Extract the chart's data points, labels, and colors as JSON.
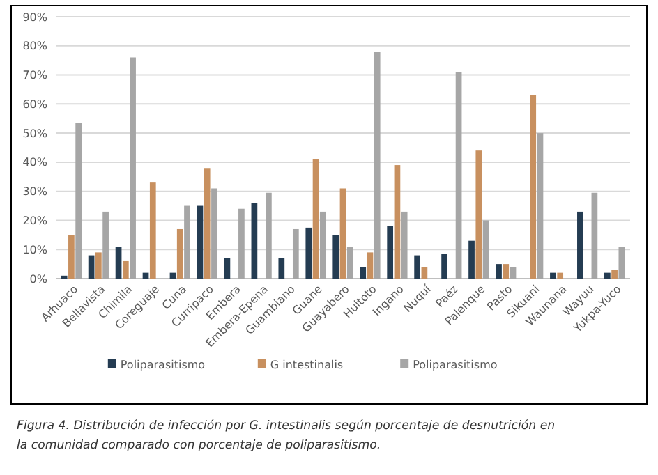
{
  "chart_data": {
    "type": "bar",
    "categories": [
      "Arhuaco",
      "Bellavista",
      "Chimila",
      "Coreguaje",
      "Cuna",
      "Curripaco",
      "Embera",
      "Embera-Epena",
      "Guambiano",
      "Guane",
      "Guayabero",
      "Huitoto",
      "Ingano",
      "Nuquí",
      "Paéz",
      "Palenque",
      "Pasto",
      "Sikuani",
      "Waunana",
      "Wayuu",
      "Yukpa-Yuco"
    ],
    "series": [
      {
        "name": "Poliparasitismo",
        "color": "#243c52",
        "values": [
          1,
          8,
          11,
          2,
          2,
          25,
          7,
          26,
          7,
          17.5,
          15,
          4,
          18,
          8,
          8.5,
          13,
          5,
          null,
          2,
          23,
          2
        ]
      },
      {
        "name": "G intestinalis",
        "color": "#c8905f",
        "values": [
          15,
          9,
          6,
          33,
          17,
          38,
          null,
          null,
          null,
          41,
          31,
          9,
          39,
          4,
          null,
          44,
          5,
          63,
          2,
          null,
          3
        ]
      },
      {
        "name": "Poliparasitismo",
        "color": "#a6a6a6",
        "values": [
          53.5,
          23,
          76,
          null,
          25,
          31,
          24,
          29.5,
          17,
          23,
          11,
          78,
          23,
          null,
          71,
          20,
          4,
          50,
          null,
          29.5,
          11
        ]
      }
    ],
    "ylim": [
      0,
      90
    ],
    "yticks": [
      {
        "value": 0,
        "label": "0%"
      },
      {
        "value": 10,
        "label": "10%"
      },
      {
        "value": 20,
        "label": "20%"
      },
      {
        "value": 30,
        "label": "30%"
      },
      {
        "value": 40,
        "label": "40%"
      },
      {
        "value": 50,
        "label": "50%"
      },
      {
        "value": 60,
        "label": "60%"
      },
      {
        "value": 70,
        "label": "70%"
      },
      {
        "value": 80,
        "label": "80%"
      },
      {
        "value": 90,
        "label": "90%"
      }
    ],
    "grid": "y",
    "legend": "bottom",
    "annotations": [
      "Figura 4. Distribución de infección por G. intestinalis según porcentaje de desnutrición en la comunidad comparado con porcentaje de poliparasitismo."
    ]
  }
}
